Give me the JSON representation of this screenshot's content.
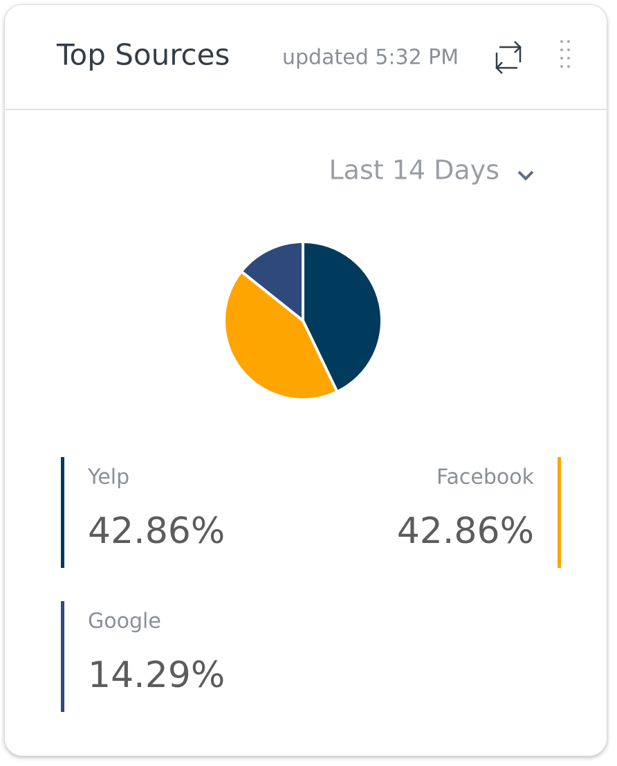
{
  "header": {
    "title": "Top Sources",
    "updated": "updated 5:32 PM"
  },
  "range_selector": "Last 14 Days",
  "chart_data": {
    "type": "pie",
    "categories": [
      "Yelp",
      "Facebook",
      "Google"
    ],
    "values": [
      42.86,
      42.86,
      14.29
    ],
    "value_labels": [
      "42.86%",
      "42.86%",
      "14.29%"
    ],
    "colors": [
      "#003a5c",
      "#ffa500",
      "#2e4a7d"
    ]
  }
}
